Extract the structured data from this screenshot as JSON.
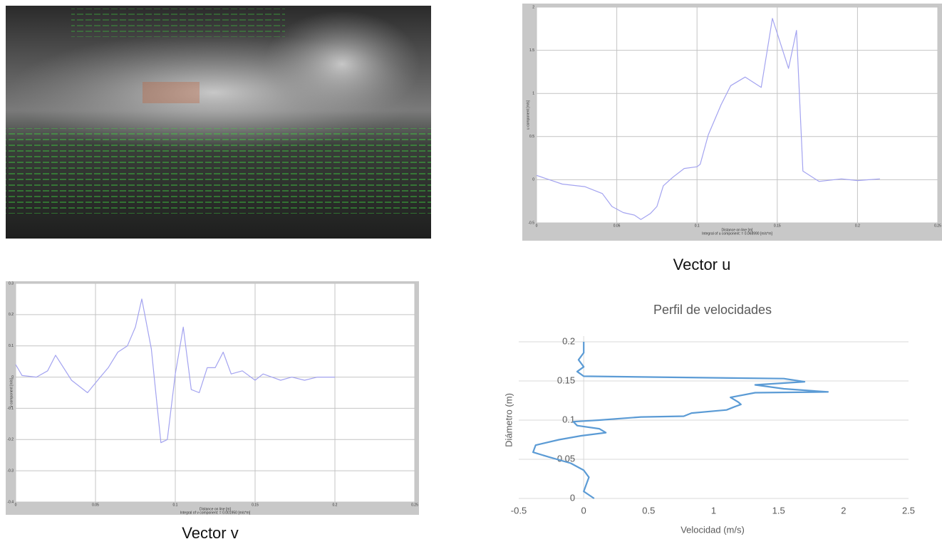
{
  "chart_data": [
    {
      "type": "line",
      "style": "matlab",
      "caption": "Vector u",
      "xlabel": "Distance on line [m]",
      "xlabel_note": "Integral of u component: = 0.068990 [m/s*m]",
      "ylabel": "u component [m/s]",
      "x": [
        0,
        0.016,
        0.03,
        0.041,
        0.047,
        0.054,
        0.061,
        0.065,
        0.071,
        0.075,
        0.079,
        0.085,
        0.092,
        0.1,
        0.102,
        0.107,
        0.115,
        0.121,
        0.13,
        0.14,
        0.147,
        0.157,
        0.162,
        0.166,
        0.176,
        0.19,
        0.2,
        0.214
      ],
      "series": [
        {
          "name": "u",
          "color": "#a3a3f0",
          "values": [
            0.05,
            -0.05,
            -0.08,
            -0.16,
            -0.31,
            -0.38,
            -0.41,
            -0.46,
            -0.39,
            -0.31,
            -0.07,
            0.03,
            0.13,
            0.15,
            0.18,
            0.52,
            0.87,
            1.09,
            1.19,
            1.07,
            1.87,
            1.29,
            1.73,
            0.1,
            -0.02,
            0.01,
            -0.01,
            0.01
          ]
        }
      ],
      "xlim": [
        0,
        0.25
      ],
      "xticks": [
        0,
        0.05,
        0.1,
        0.15,
        0.2,
        0.25
      ],
      "ylim": [
        -0.5,
        2
      ],
      "yticks": [
        -0.5,
        0,
        0.5,
        1,
        1.5,
        2
      ],
      "grid": true
    },
    {
      "type": "line",
      "style": "matlab",
      "caption": "Vector v",
      "xlabel": "Distance on line [m]",
      "xlabel_note": "Integral of v component: = 0.001950 [m/s*m]",
      "ylabel": "v component [m/s]",
      "x": [
        0,
        0.004,
        0.013,
        0.02,
        0.025,
        0.035,
        0.045,
        0.053,
        0.058,
        0.064,
        0.07,
        0.075,
        0.079,
        0.085,
        0.091,
        0.095,
        0.1,
        0.105,
        0.11,
        0.115,
        0.12,
        0.125,
        0.13,
        0.135,
        0.142,
        0.15,
        0.155,
        0.166,
        0.173,
        0.181,
        0.189,
        0.2
      ],
      "series": [
        {
          "name": "v",
          "color": "#a3a3f0",
          "values": [
            0.04,
            0.005,
            0.0,
            0.02,
            0.07,
            -0.01,
            -0.05,
            0.0,
            0.03,
            0.08,
            0.1,
            0.16,
            0.25,
            0.09,
            -0.21,
            -0.2,
            0.01,
            0.16,
            -0.04,
            -0.05,
            0.03,
            0.03,
            0.08,
            0.01,
            0.02,
            -0.01,
            0.01,
            -0.01,
            0.0,
            -0.01,
            0.0,
            0.0
          ]
        }
      ],
      "xlim": [
        0,
        0.25
      ],
      "xticks": [
        0,
        0.05,
        0.1,
        0.15,
        0.2,
        0.25
      ],
      "ylim": [
        -0.4,
        0.3
      ],
      "yticks": [
        -0.4,
        -0.3,
        -0.2,
        -0.1,
        0,
        0.1,
        0.2,
        0.3
      ],
      "grid": true
    },
    {
      "type": "line",
      "style": "excel",
      "title": "Perfil de velocidades",
      "xlabel": "Velocidad (m/s)",
      "ylabel": "Diámetro (m)",
      "x": [
        0.08,
        0.0,
        0.02,
        0.04,
        0.0,
        -0.1,
        -0.27,
        -0.39,
        -0.37,
        -0.19,
        -0.02,
        0.17,
        0.12,
        -0.05,
        -0.08,
        0.12,
        0.44,
        0.77,
        0.83,
        1.1,
        1.16,
        1.21,
        1.19,
        1.13,
        1.32,
        1.88,
        1.54,
        1.32,
        1.7,
        1.54,
        0.0,
        -0.05,
        0.0,
        -0.04,
        0.0,
        0.0
      ],
      "series": [
        {
          "name": "Perfil",
          "color": "#5b9bd5",
          "values": [
            0,
            0.009,
            0.018,
            0.027,
            0.036,
            0.045,
            0.053,
            0.059,
            0.068,
            0.075,
            0.08,
            0.084,
            0.089,
            0.093,
            0.098,
            0.1,
            0.104,
            0.105,
            0.109,
            0.113,
            0.117,
            0.12,
            0.123,
            0.129,
            0.135,
            0.136,
            0.14,
            0.145,
            0.149,
            0.153,
            0.156,
            0.162,
            0.168,
            0.177,
            0.186,
            0.2
          ]
        }
      ],
      "xlim": [
        -0.5,
        2.5
      ],
      "xticks": [
        -0.5,
        0,
        0.5,
        1,
        1.5,
        2,
        2.5
      ],
      "ylim": [
        0,
        0.2
      ],
      "yticks": [
        0,
        0.05,
        0.1,
        0.15,
        0.2
      ],
      "grid": true
    }
  ]
}
